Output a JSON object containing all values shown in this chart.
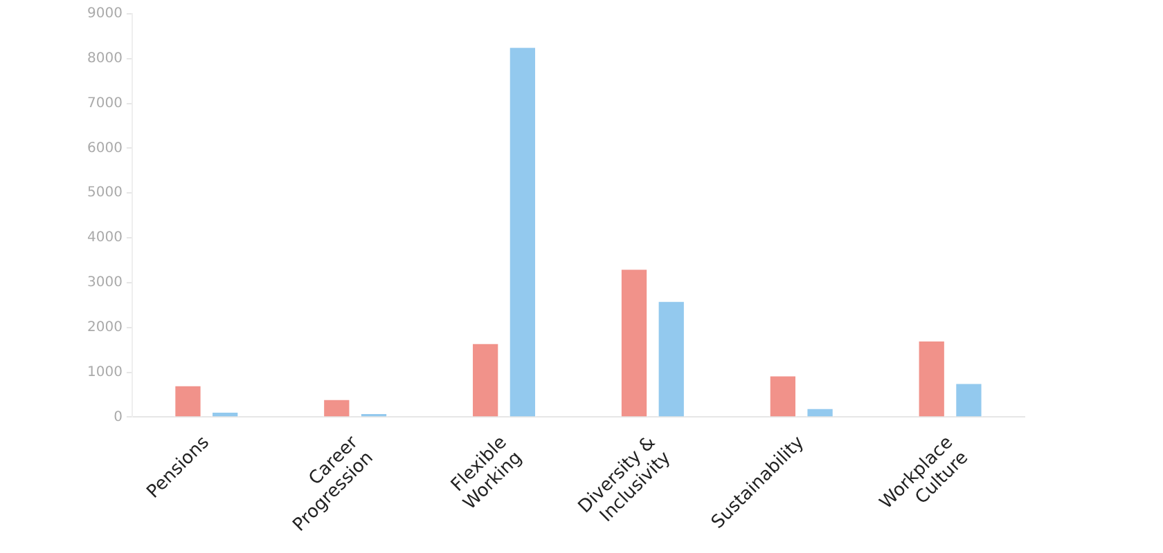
{
  "chart_data": {
    "type": "bar",
    "categories": [
      "Pensions",
      "Career Progression",
      "Flexible Working",
      "Diversity & Inclusivity",
      "Sustainability",
      "Workplace Culture"
    ],
    "series": [
      {
        "color": "#f1928a",
        "values": [
          720,
          410,
          1660,
          3320,
          940,
          1720
        ]
      },
      {
        "color": "#93c9ee",
        "values": [
          130,
          100,
          8270,
          2600,
          210,
          770
        ]
      }
    ],
    "ylim": [
      0,
      9000
    ],
    "yticks": [
      0,
      1000,
      2000,
      3000,
      4000,
      5000,
      6000,
      7000,
      8000,
      9000
    ],
    "grid": false,
    "legend": false
  }
}
